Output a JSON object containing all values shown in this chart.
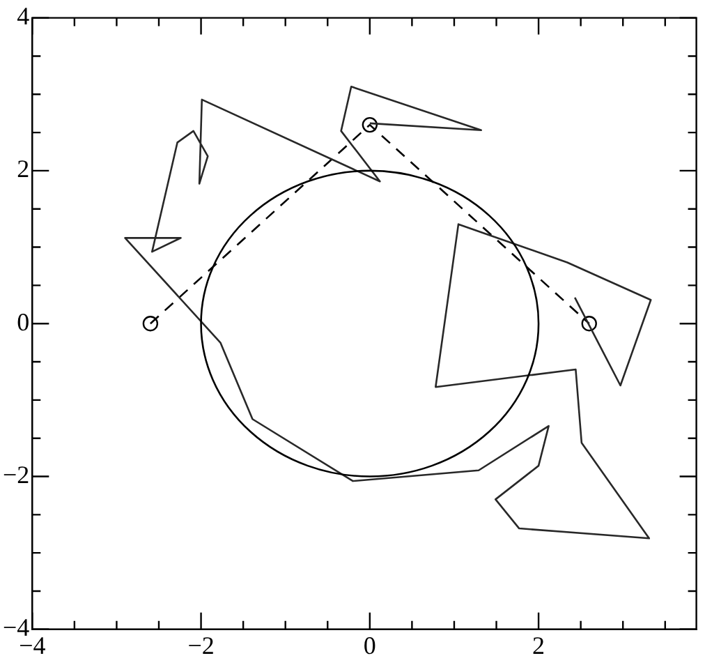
{
  "chart_data": {
    "type": "line",
    "xlim": [
      -4,
      3.87
    ],
    "ylim": [
      -4,
      4
    ],
    "xticks": [
      -4,
      {
        "value": -3.5,
        "label": null
      },
      {
        "value": -3,
        "label": null
      },
      {
        "value": -2.5,
        "label": null
      },
      -2,
      {
        "value": -1.5,
        "label": null
      },
      {
        "value": -1,
        "label": null
      },
      {
        "value": -0.5,
        "label": null
      },
      0,
      {
        "value": 0.5,
        "label": null
      },
      {
        "value": 1,
        "label": null
      },
      {
        "value": 1.5,
        "label": null
      },
      2,
      {
        "value": 2.5,
        "label": null
      },
      {
        "value": 3,
        "label": null
      },
      {
        "value": 3.5,
        "label": null
      }
    ],
    "yticks": [
      -4,
      {
        "value": -3.5,
        "label": null
      },
      {
        "value": -3,
        "label": null
      },
      {
        "value": -2.5,
        "label": null
      },
      -2,
      {
        "value": -1.5,
        "label": null
      },
      {
        "value": -1,
        "label": null
      },
      {
        "value": -0.5,
        "label": null
      },
      0,
      {
        "value": 0.5,
        "label": null
      },
      {
        "value": 1,
        "label": null
      },
      {
        "value": 1.5,
        "label": null
      },
      2,
      {
        "value": 2.5,
        "label": null
      },
      {
        "value": 3,
        "label": null
      },
      {
        "value": 3.5,
        "label": null
      },
      4
    ],
    "grid": false,
    "legend": false,
    "series": [
      {
        "type": "line",
        "color": "#282828",
        "line_style": "solid",
        "marker": "none",
        "x": [
          0,
          1.32,
          -0.22,
          -0.34,
          0.12,
          -1.99,
          -2.02,
          -1.92,
          -2.09,
          -2.28,
          -2.58,
          -2.24,
          -2.9,
          -1.77,
          -1.39,
          -0.2,
          1.29,
          2.12,
          2.0,
          1.49,
          1.77,
          3.31,
          2.51,
          2.44,
          0.78,
          1.05,
          2.34,
          3.33,
          2.97,
          2.43
        ],
        "values": [
          2.62,
          2.53,
          3.1,
          2.52,
          1.86,
          2.93,
          1.83,
          2.19,
          2.52,
          2.37,
          0.94,
          1.12,
          1.12,
          -0.25,
          -1.25,
          -2.06,
          -1.92,
          -1.34,
          -1.86,
          -2.3,
          -2.68,
          -2.81,
          -1.56,
          -0.6,
          -0.83,
          1.3,
          0.8,
          0.31,
          -0.81,
          0.34
        ]
      },
      {
        "type": "line",
        "color": "#000000",
        "line_style": "dashed",
        "marker": "circle",
        "x": [
          -2.6,
          0,
          2.6
        ],
        "values": [
          0,
          2.6,
          0
        ]
      }
    ]
  }
}
